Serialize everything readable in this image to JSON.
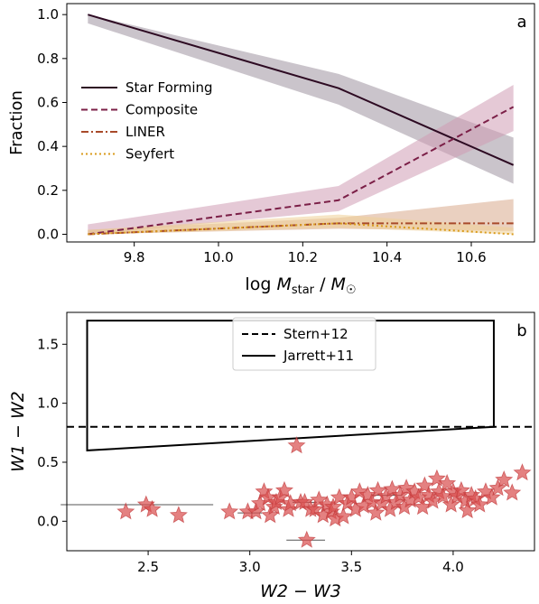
{
  "chart_data": [
    {
      "type": "line",
      "panel_label": "a",
      "xlabel": "log M_star / M_☉",
      "ylabel": "Fraction",
      "xlim": [
        9.64,
        10.75
      ],
      "ylim": [
        -0.035,
        1.05
      ],
      "xticks": [
        "9.8",
        "10.0",
        "10.2",
        "10.4",
        "10.6"
      ],
      "yticks": [
        "0.0",
        "0.2",
        "0.4",
        "0.6",
        "0.8",
        "1.0"
      ],
      "x": [
        9.69,
        10.285,
        10.7
      ],
      "legend_position": "center-left",
      "series": [
        {
          "name": "Star Forming",
          "values": [
            1.0,
            0.665,
            0.315
          ],
          "lower": [
            0.96,
            0.59,
            0.23
          ],
          "upper": [
            1.0,
            0.73,
            0.44
          ],
          "color": "#2d0a22",
          "band_color": "#9e93a0",
          "dash": "solid"
        },
        {
          "name": "Composite",
          "values": [
            0.0,
            0.155,
            0.58
          ],
          "lower": [
            0.0,
            0.105,
            0.47
          ],
          "upper": [
            0.045,
            0.22,
            0.68
          ],
          "color": "#7b1f47",
          "band_color": "#cf9db4",
          "dash": "dashed"
        },
        {
          "name": "LINER",
          "values": [
            0.0,
            0.05,
            0.05
          ],
          "lower": [
            0.0,
            0.025,
            0.015
          ],
          "upper": [
            0.02,
            0.075,
            0.16
          ],
          "color": "#a84a2a",
          "band_color": "#d9aa8d",
          "dash": "dashdot"
        },
        {
          "name": "Seyfert",
          "values": [
            0.0,
            0.05,
            0.0
          ],
          "lower": [
            0.0,
            0.03,
            0.0
          ],
          "upper": [
            0.02,
            0.09,
            0.03
          ],
          "color": "#d99b1c",
          "band_color": "#efcf96",
          "dash": "dotted"
        }
      ]
    },
    {
      "type": "scatter",
      "panel_label": "b",
      "xlabel": "W2 − W3",
      "ylabel": "W1 − W2",
      "xlim": [
        2.1,
        4.4
      ],
      "ylim": [
        -0.25,
        1.77
      ],
      "xticks": [
        "2.5",
        "3.0",
        "3.5",
        "4.0"
      ],
      "yticks": [
        "0.0",
        "0.5",
        "1.0",
        "1.5"
      ],
      "legend_position": "top-center",
      "reference_lines": [
        {
          "name": "Stern+12",
          "style": "dashed",
          "y": 0.8
        },
        {
          "name": "Jarrett+11",
          "style": "solid",
          "polygon": [
            [
              2.2,
              1.7
            ],
            [
              2.2,
              0.6
            ],
            [
              4.2,
              0.8
            ],
            [
              4.2,
              1.7
            ]
          ]
        }
      ],
      "marker": "star",
      "marker_color": "#d95050",
      "points": [
        [
          2.39,
          0.08
        ],
        [
          2.49,
          0.14
        ],
        [
          2.52,
          0.1
        ],
        [
          2.65,
          0.05
        ],
        [
          2.9,
          0.08
        ],
        [
          2.99,
          0.08
        ],
        [
          3.03,
          0.08
        ],
        [
          3.05,
          0.15
        ],
        [
          3.07,
          0.25
        ],
        [
          3.09,
          0.2
        ],
        [
          3.1,
          0.05
        ],
        [
          3.12,
          0.12
        ],
        [
          3.13,
          0.16
        ],
        [
          3.15,
          0.2
        ],
        [
          3.17,
          0.26
        ],
        [
          3.19,
          0.1
        ],
        [
          3.2,
          0.15
        ],
        [
          3.23,
          0.64
        ],
        [
          3.25,
          0.16
        ],
        [
          3.27,
          0.16
        ],
        [
          3.28,
          -0.16
        ],
        [
          3.3,
          0.1
        ],
        [
          3.32,
          0.1
        ],
        [
          3.34,
          0.18
        ],
        [
          3.36,
          0.05
        ],
        [
          3.38,
          0.14
        ],
        [
          3.4,
          0.08
        ],
        [
          3.41,
          0.12
        ],
        [
          3.42,
          0.02
        ],
        [
          3.44,
          0.2
        ],
        [
          3.46,
          0.04
        ],
        [
          3.48,
          0.15
        ],
        [
          3.5,
          0.2
        ],
        [
          3.52,
          0.1
        ],
        [
          3.54,
          0.25
        ],
        [
          3.56,
          0.13
        ],
        [
          3.58,
          0.22
        ],
        [
          3.6,
          0.16
        ],
        [
          3.62,
          0.07
        ],
        [
          3.63,
          0.26
        ],
        [
          3.65,
          0.15
        ],
        [
          3.67,
          0.21
        ],
        [
          3.69,
          0.1
        ],
        [
          3.7,
          0.27
        ],
        [
          3.72,
          0.16
        ],
        [
          3.74,
          0.22
        ],
        [
          3.76,
          0.12
        ],
        [
          3.77,
          0.28
        ],
        [
          3.79,
          0.18
        ],
        [
          3.81,
          0.25
        ],
        [
          3.83,
          0.2
        ],
        [
          3.85,
          0.12
        ],
        [
          3.86,
          0.3
        ],
        [
          3.88,
          0.22
        ],
        [
          3.9,
          0.17
        ],
        [
          3.92,
          0.36
        ],
        [
          3.93,
          0.25
        ],
        [
          3.95,
          0.21
        ],
        [
          3.97,
          0.32
        ],
        [
          3.99,
          0.14
        ],
        [
          4.0,
          0.25
        ],
        [
          4.02,
          0.21
        ],
        [
          4.04,
          0.26
        ],
        [
          4.06,
          0.17
        ],
        [
          4.07,
          0.09
        ],
        [
          4.09,
          0.22
        ],
        [
          4.11,
          0.19
        ],
        [
          4.13,
          0.14
        ],
        [
          4.16,
          0.25
        ],
        [
          4.19,
          0.2
        ],
        [
          4.22,
          0.28
        ],
        [
          4.25,
          0.35
        ],
        [
          4.29,
          0.24
        ],
        [
          4.34,
          0.41
        ]
      ],
      "error_bars": [
        {
          "center": [
            2.52,
            0.14
          ],
          "x_span": [
            2.07,
            2.82
          ]
        },
        {
          "center": [
            3.0,
            0.07
          ],
          "x_span": [
            2.94,
            3.06
          ]
        },
        {
          "center": [
            3.27,
            0.16
          ],
          "x_span": [
            3.21,
            3.33
          ]
        },
        {
          "center": [
            3.28,
            -0.16
          ],
          "x_span": [
            3.18,
            3.37
          ]
        },
        {
          "center": [
            3.68,
            0.22
          ],
          "x_span": [
            3.6,
            3.75
          ]
        }
      ]
    }
  ]
}
